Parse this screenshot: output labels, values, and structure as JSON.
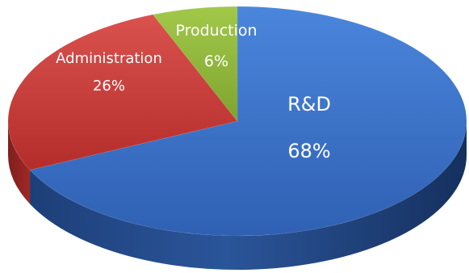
{
  "chart_data": {
    "type": "pie",
    "style": "3d",
    "legend": "none",
    "categories": [
      "R&D",
      "Administration",
      "Production"
    ],
    "values": [
      68,
      26,
      6
    ],
    "unit": "%",
    "labels": [
      {
        "name": "R&D",
        "value_text": "68%"
      },
      {
        "name": "Administration",
        "value_text": "26%"
      },
      {
        "name": "Production",
        "value_text": "6%"
      }
    ],
    "colors": [
      "#3A6FC4",
      "#C83A38",
      "#8DB43A"
    ]
  }
}
